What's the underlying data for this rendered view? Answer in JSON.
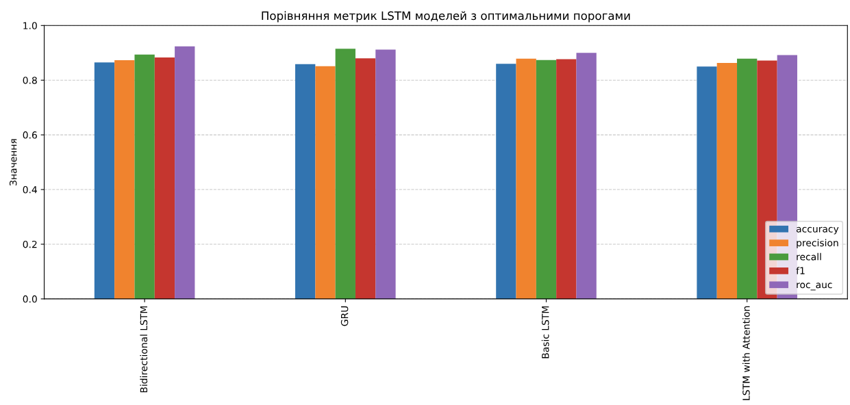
{
  "chart_data": {
    "type": "bar",
    "title": "Порівняння метрик LSTM моделей з оптимальними порогами",
    "ylabel": "Значення",
    "categories": [
      "Bidirectional LSTM",
      "GRU",
      "Basic LSTM",
      "LSTM with Attention"
    ],
    "series": [
      {
        "name": "accuracy",
        "color": "#3274b0",
        "values": [
          0.865,
          0.859,
          0.86,
          0.85
        ]
      },
      {
        "name": "precision",
        "color": "#f0832e",
        "values": [
          0.873,
          0.851,
          0.879,
          0.863
        ]
      },
      {
        "name": "recall",
        "color": "#4a9b3d",
        "values": [
          0.894,
          0.915,
          0.874,
          0.879
        ]
      },
      {
        "name": "f1",
        "color": "#c5362f",
        "values": [
          0.883,
          0.88,
          0.877,
          0.872
        ]
      },
      {
        "name": "roc_auc",
        "color": "#8f68b8",
        "values": [
          0.924,
          0.912,
          0.9,
          0.892
        ]
      }
    ],
    "ylim": [
      0,
      1.0
    ],
    "yticks": [
      {
        "value": 0,
        "label": "0.0"
      },
      0.2,
      0.4,
      0.6,
      0.8,
      {
        "value": 1,
        "label": "1.0"
      }
    ],
    "grid": "y",
    "legend": "lower right"
  }
}
